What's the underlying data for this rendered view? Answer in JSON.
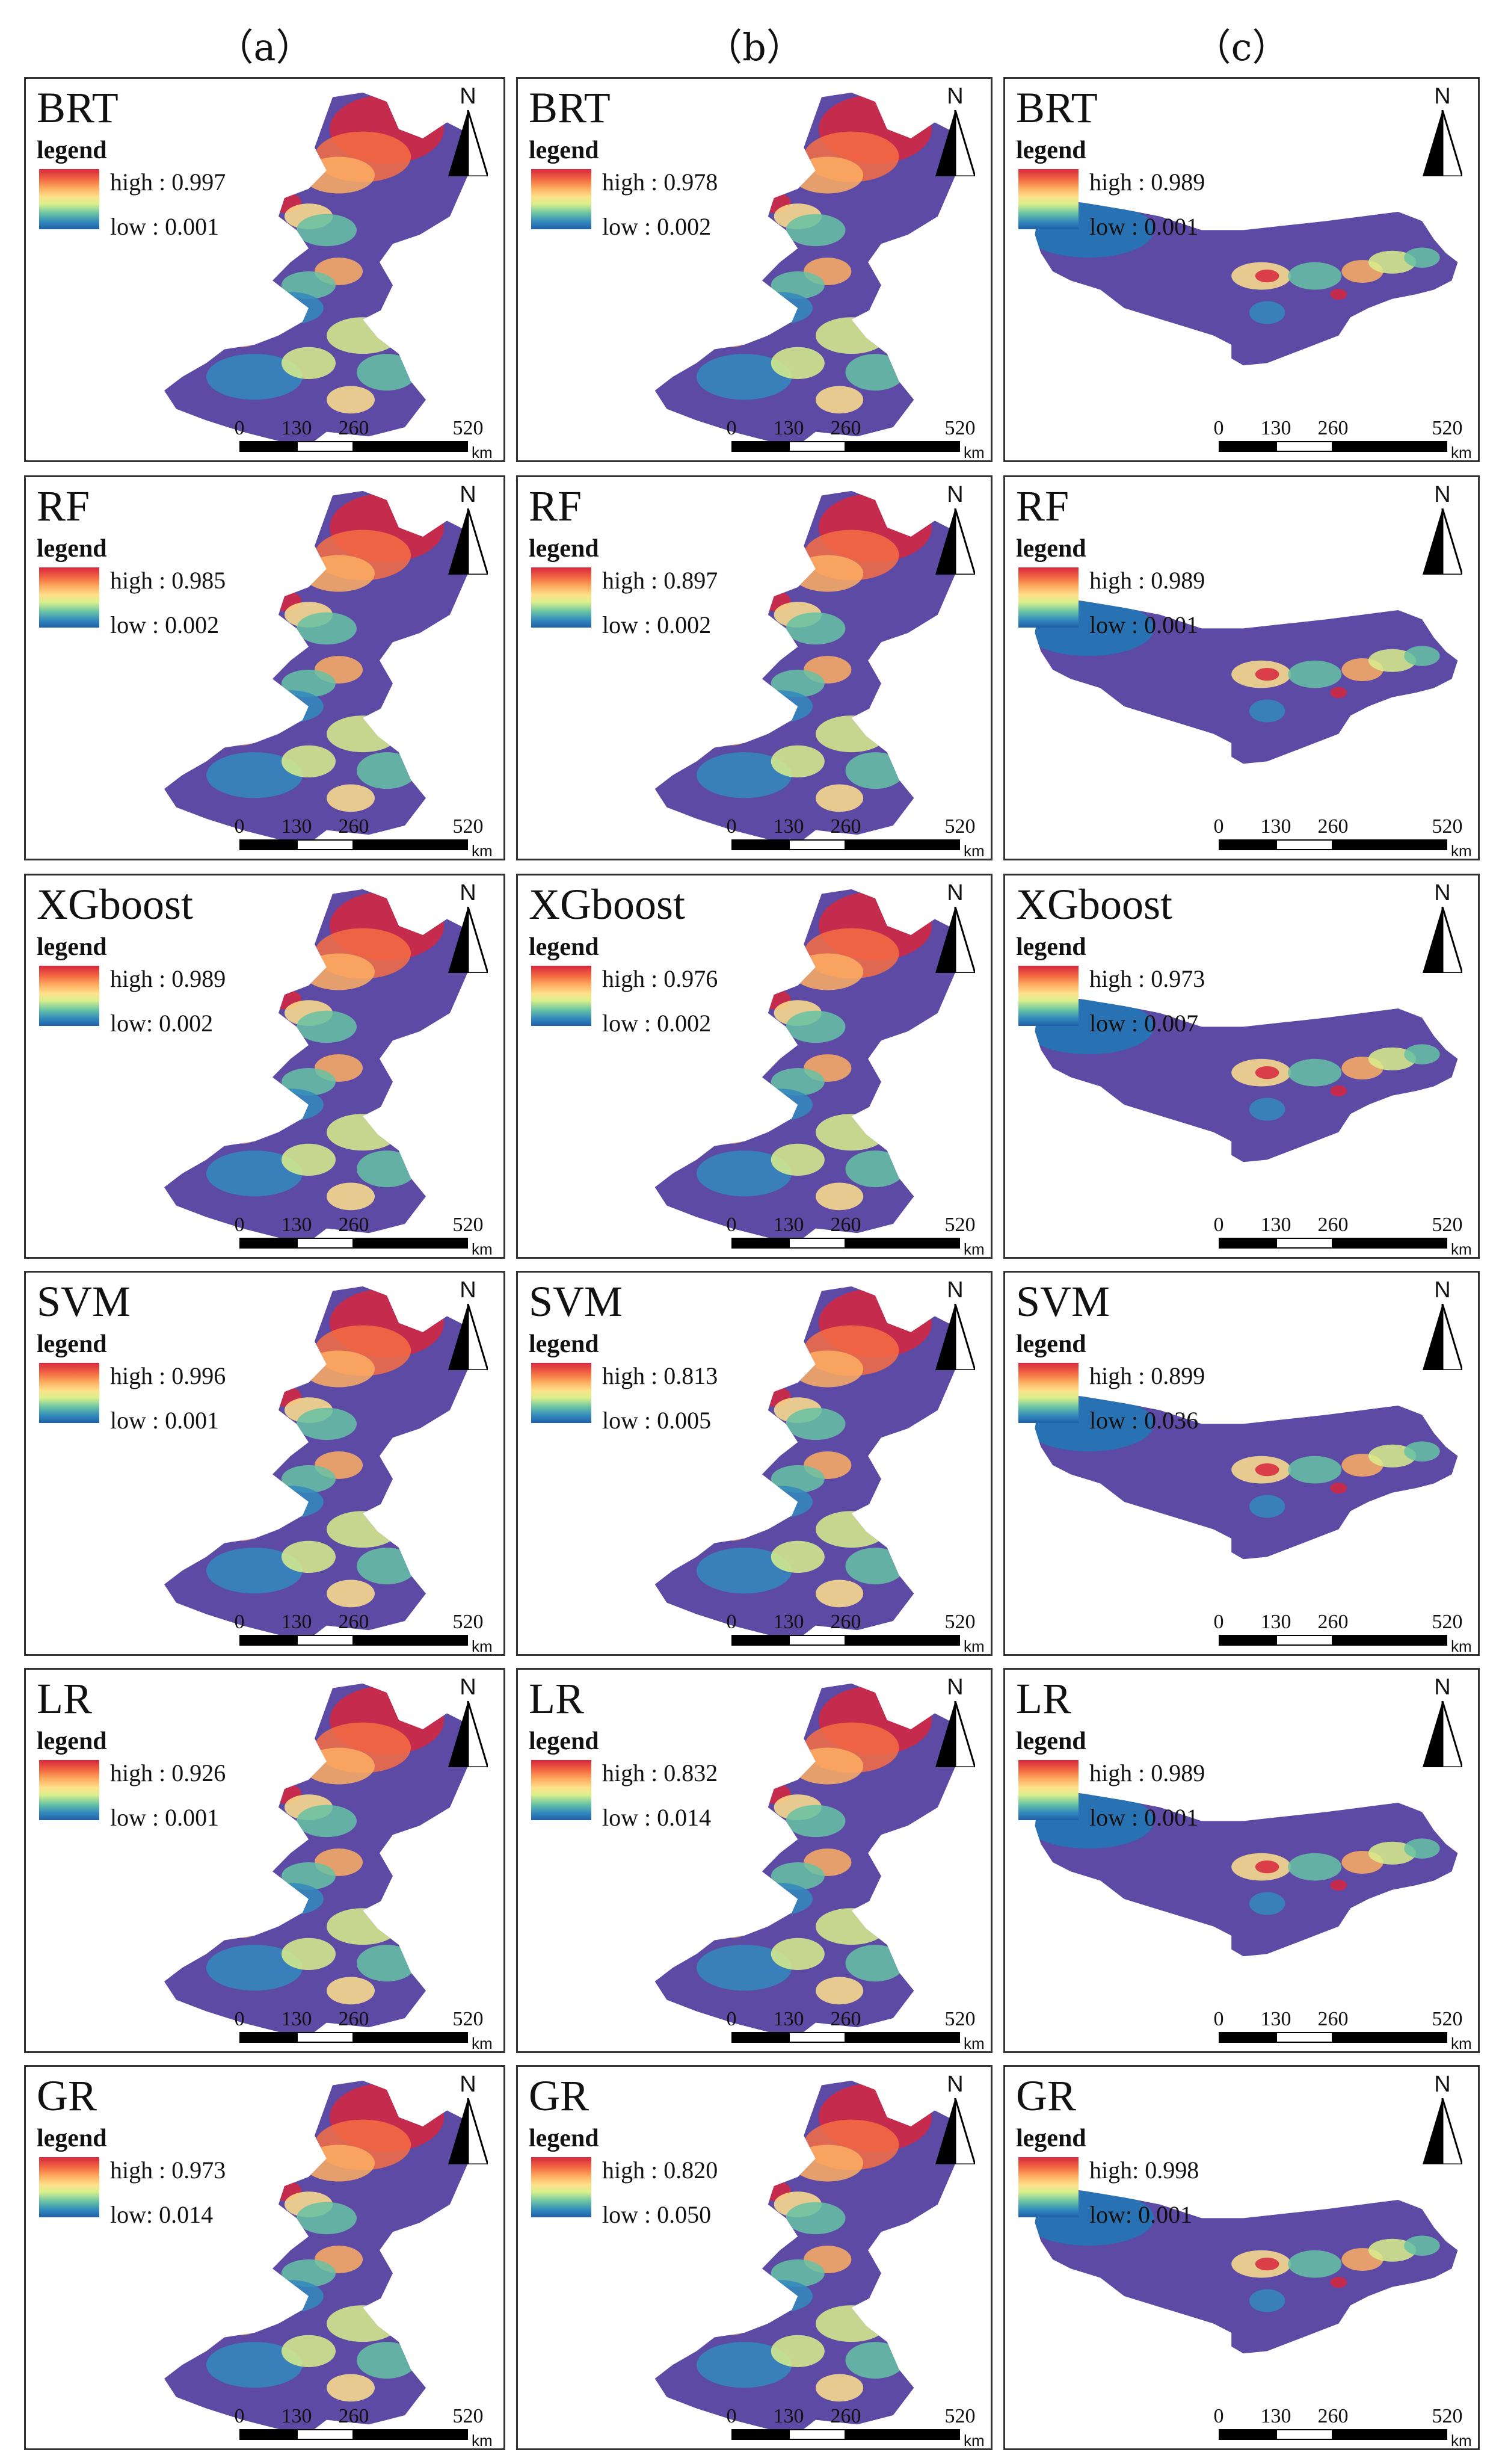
{
  "columns": [
    "（a）",
    "（b）",
    "（c）"
  ],
  "legend_title": "legend",
  "north_label": "N",
  "scale": {
    "ticks": [
      "0",
      "130",
      "260",
      "520"
    ],
    "unit": "km"
  },
  "ramp_colors": [
    "#d7263d",
    "#f46d43",
    "#fdae61",
    "#fee08b",
    "#d9ef8b",
    "#66c2a5",
    "#3288bd",
    "#1f5fa8"
  ],
  "rows": [
    {
      "model": "BRT",
      "panels": [
        {
          "high": "high : 0.997",
          "low": "low : 0.001"
        },
        {
          "high": "high : 0.978",
          "low": "low : 0.002"
        },
        {
          "high": "high : 0.989",
          "low": "low : 0.001"
        }
      ]
    },
    {
      "model": "RF",
      "panels": [
        {
          "high": "high : 0.985",
          "low": "low : 0.002"
        },
        {
          "high": "high : 0.897",
          "low": "low : 0.002"
        },
        {
          "high": "high : 0.989",
          "low": "low : 0.001"
        }
      ]
    },
    {
      "model": "XGboost",
      "panels": [
        {
          "high": "high : 0.989",
          "low": "low: 0.002"
        },
        {
          "high": "high : 0.976",
          "low": "low : 0.002"
        },
        {
          "high": "high : 0.973",
          "low": "low : 0.007"
        }
      ]
    },
    {
      "model": "SVM",
      "panels": [
        {
          "high": "high : 0.996",
          "low": "low : 0.001"
        },
        {
          "high": "high : 0.813",
          "low": "low : 0.005"
        },
        {
          "high": "high : 0.899",
          "low": "low : 0.036"
        }
      ]
    },
    {
      "model": "LR",
      "panels": [
        {
          "high": "high : 0.926",
          "low": "low : 0.001"
        },
        {
          "high": "high : 0.832",
          "low": "low : 0.014"
        },
        {
          "high": "high : 0.989",
          "low": "low : 0.001"
        }
      ]
    },
    {
      "model": "GR",
      "panels": [
        {
          "high": "high : 0.973",
          "low": "low: 0.014"
        },
        {
          "high": "high : 0.820",
          "low": "low : 0.050"
        },
        {
          "high": "high: 0.998",
          "low": "low: 0.001"
        }
      ]
    }
  ]
}
